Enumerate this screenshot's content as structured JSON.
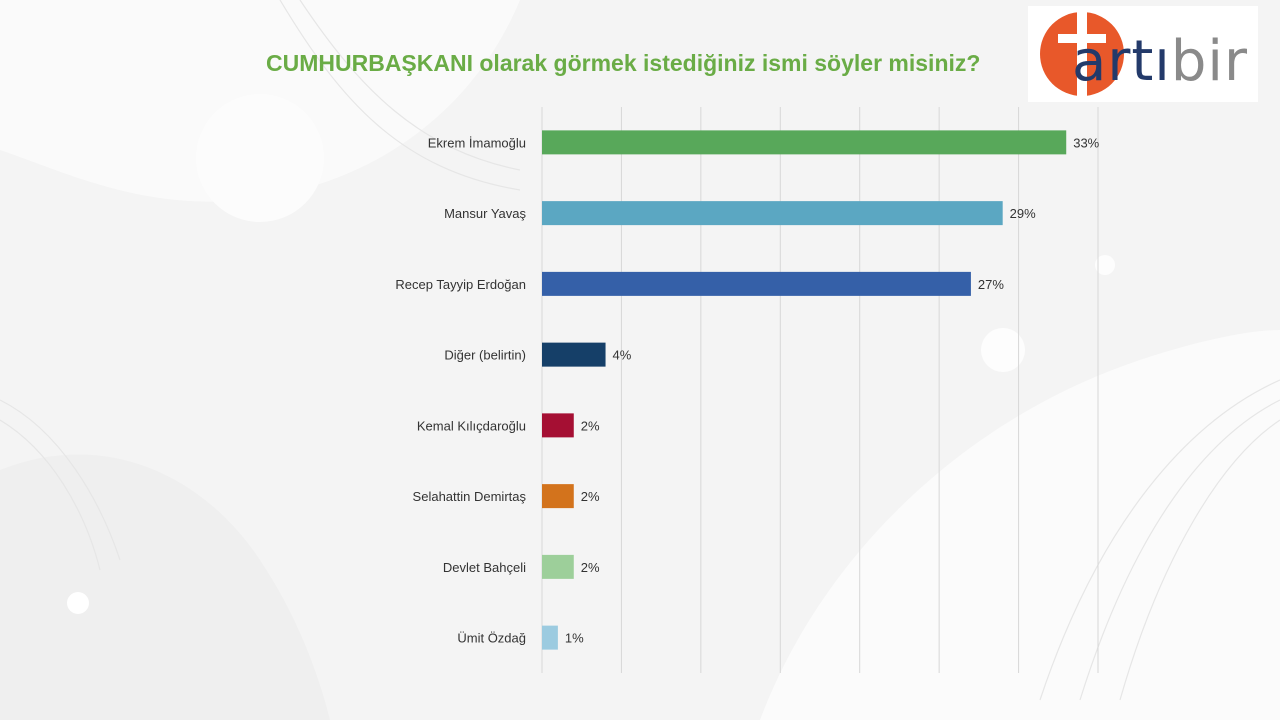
{
  "header": {
    "title": "CUMHURBAŞKANI olarak görmek istediğiniz ismi söyler misiniz?"
  },
  "logo": {
    "text_a": "art",
    "text_b": "ı",
    "text_c": "bir",
    "circle_color": "#e8582a",
    "text_color": "#233a6a"
  },
  "chart_data": {
    "type": "bar",
    "orientation": "horizontal",
    "categories": [
      "Ekrem İmamoğlu",
      "Mansur Yavaş",
      "Recep Tayyip Erdoğan",
      "Diğer (belirtin)",
      "Kemal Kılıçdaroğlu",
      "Selahattin Demirtaş",
      "Devlet Bahçeli",
      "Ümit Özdağ"
    ],
    "values": [
      33,
      29,
      27,
      4,
      2,
      2,
      2,
      1
    ],
    "value_labels": [
      "33%",
      "29%",
      "27%",
      "4%",
      "2%",
      "2%",
      "2%",
      "1%"
    ],
    "colors": [
      "#58a85a",
      "#5ba7c2",
      "#3560a8",
      "#153f68",
      "#a50f33",
      "#d3731c",
      "#9dcf9a",
      "#9ccbe0"
    ],
    "unit": "%",
    "xlim": [
      0,
      35
    ],
    "grid": true
  }
}
